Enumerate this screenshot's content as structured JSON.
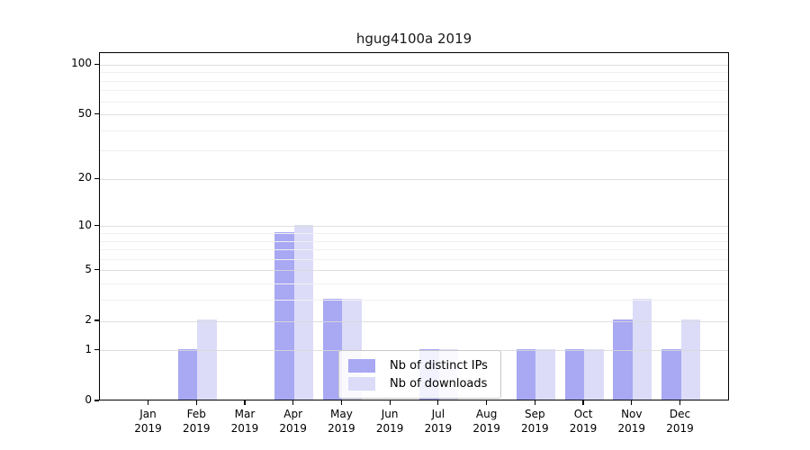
{
  "chart_data": {
    "type": "bar",
    "title": "hgug4100a 2019",
    "categories": [
      "Jan",
      "Feb",
      "Mar",
      "Apr",
      "May",
      "Jun",
      "Jul",
      "Aug",
      "Sep",
      "Oct",
      "Nov",
      "Dec"
    ],
    "x_tick_second_line": "2019",
    "series": [
      {
        "name": "Nb of distinct IPs",
        "color": "#a8a8f3",
        "values": [
          0,
          1,
          0,
          9,
          3,
          0,
          1,
          0,
          1,
          1,
          2,
          1
        ]
      },
      {
        "name": "Nb of downloads",
        "color": "#dcdcf8",
        "values": [
          0,
          2,
          0,
          10,
          3,
          0,
          1,
          0,
          1,
          1,
          3,
          2
        ]
      }
    ],
    "xlabel": "",
    "ylabel": "",
    "y_scale": "log1p",
    "y_ticks": [
      0,
      1,
      2,
      5,
      10,
      20,
      50,
      100
    ],
    "y_minor_ticks": [
      3,
      4,
      6,
      7,
      8,
      9,
      30,
      40,
      60,
      70,
      80,
      90
    ],
    "ylim": [
      0,
      118
    ],
    "grid": "on",
    "grid_major_color": "#d9d9d9",
    "grid_minor_color": "#f0f0f0",
    "axis_color": "#000000",
    "legend_position": "inside-bottom-center"
  }
}
